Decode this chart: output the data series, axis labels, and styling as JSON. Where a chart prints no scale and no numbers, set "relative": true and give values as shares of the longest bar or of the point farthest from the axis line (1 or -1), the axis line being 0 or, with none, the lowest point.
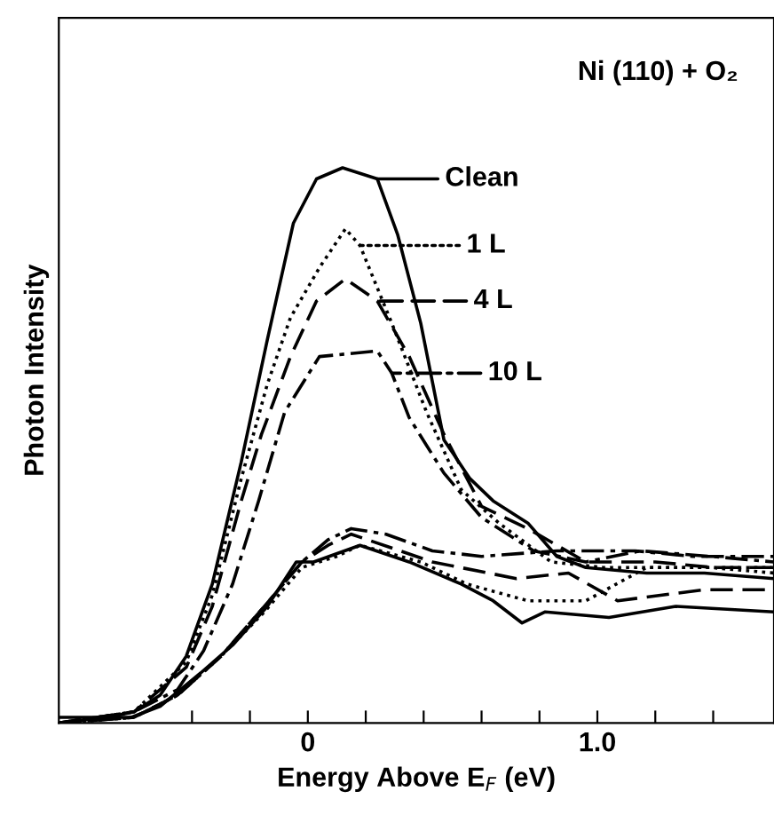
{
  "chart_data": {
    "type": "line",
    "title": "Ni (110) + O₂",
    "xlabel": "Energy Above E$_{F}$ (eV)",
    "ylabel": "Photon Intensity",
    "relative": true,
    "xlim": [
      -0.86,
      1.61
    ],
    "xticks": [
      {
        "value": -0.4,
        "label": null
      },
      {
        "value": -0.2,
        "label": null
      },
      0,
      {
        "value": 0.2,
        "label": null
      },
      {
        "value": 0.4,
        "label": null
      },
      {
        "value": 0.6,
        "label": null
      },
      {
        "value": 0.8,
        "label": null
      },
      {
        "value": 1.0,
        "label": "1.0"
      },
      {
        "value": 1.2,
        "label": null
      },
      {
        "value": 1.4,
        "label": null
      }
    ],
    "grid": false,
    "legend": "right",
    "marker": "none",
    "series": [
      {
        "name": "Clean",
        "color": "#000000",
        "line_style": "solid",
        "x": [
          -0.86,
          -0.69,
          -0.6,
          -0.51,
          -0.42,
          -0.33,
          -0.23,
          -0.14,
          -0.05,
          0.03,
          0.12,
          0.24,
          0.31,
          0.39,
          0.47,
          0.56,
          0.64,
          0.76,
          0.86,
          0.96,
          1.17,
          1.37,
          1.61
        ],
        "values": [
          0,
          0.01,
          0.02,
          0.05,
          0.12,
          0.25,
          0.47,
          0.69,
          0.9,
          0.98,
          1.0,
          0.98,
          0.88,
          0.72,
          0.51,
          0.44,
          0.4,
          0.36,
          0.3,
          0.28,
          0.27,
          0.27,
          0.26
        ]
      },
      {
        "name": "1 L",
        "color": "#000000",
        "line_style": "dotted",
        "x": [
          -0.86,
          -0.6,
          -0.42,
          -0.33,
          -0.23,
          -0.14,
          -0.06,
          0.04,
          0.13,
          0.18,
          0.29,
          0.41,
          0.53,
          0.66,
          0.84,
          1.02,
          1.21,
          1.39,
          1.61
        ],
        "values": [
          0,
          0.02,
          0.11,
          0.23,
          0.44,
          0.61,
          0.73,
          0.82,
          0.89,
          0.86,
          0.72,
          0.56,
          0.42,
          0.36,
          0.29,
          0.28,
          0.28,
          0.28,
          0.27
        ]
      },
      {
        "name": "4 L",
        "color": "#000000",
        "line_style": "dashed",
        "x": [
          -0.86,
          -0.6,
          -0.42,
          -0.33,
          -0.23,
          -0.16,
          -0.06,
          0.03,
          0.13,
          0.24,
          0.35,
          0.47,
          0.6,
          0.76,
          0.96,
          1.2,
          1.4,
          1.61
        ],
        "values": [
          0,
          0.02,
          0.1,
          0.21,
          0.4,
          0.52,
          0.66,
          0.76,
          0.8,
          0.76,
          0.66,
          0.52,
          0.39,
          0.35,
          0.29,
          0.29,
          0.28,
          0.28
        ]
      },
      {
        "name": "10 L",
        "color": "#000000",
        "line_style": "dashdot",
        "x": [
          -0.86,
          -0.6,
          -0.45,
          -0.36,
          -0.26,
          -0.17,
          -0.08,
          0.04,
          0.24,
          0.29,
          0.35,
          0.47,
          0.6,
          0.78,
          0.96,
          1.15,
          1.39,
          1.61
        ],
        "values": [
          0,
          0.02,
          0.06,
          0.13,
          0.25,
          0.4,
          0.56,
          0.66,
          0.67,
          0.63,
          0.55,
          0.45,
          0.37,
          0.31,
          0.29,
          0.31,
          0.3,
          0.29
        ]
      },
      {
        "color": "#000000",
        "line_style": "solid",
        "x": [
          -0.86,
          -0.61,
          -0.51,
          -0.37,
          -0.26,
          -0.14,
          -0.04,
          0.02,
          0.18,
          0.35,
          0.53,
          0.64,
          0.74,
          0.82,
          1.04,
          1.27,
          1.61
        ],
        "values": [
          0.01,
          0.01,
          0.03,
          0.09,
          0.14,
          0.21,
          0.29,
          0.29,
          0.32,
          0.29,
          0.25,
          0.22,
          0.18,
          0.2,
          0.19,
          0.21,
          0.2
        ]
      },
      {
        "color": "#000000",
        "line_style": "dotted",
        "x": [
          -0.86,
          -0.6,
          -0.45,
          -0.3,
          -0.15,
          -0.02,
          0.1,
          0.18,
          0.39,
          0.55,
          0.76,
          0.96,
          1.17,
          1.61
        ],
        "values": [
          0,
          0.01,
          0.05,
          0.12,
          0.2,
          0.28,
          0.3,
          0.32,
          0.29,
          0.25,
          0.22,
          0.22,
          0.28,
          0.28
        ]
      },
      {
        "color": "#000000",
        "line_style": "dashed",
        "x": [
          -0.86,
          -0.6,
          -0.45,
          -0.3,
          -0.15,
          -0.02,
          0.07,
          0.15,
          0.43,
          0.72,
          0.9,
          1.07,
          1.37,
          1.61
        ],
        "values": [
          0,
          0.01,
          0.05,
          0.12,
          0.21,
          0.29,
          0.32,
          0.34,
          0.29,
          0.26,
          0.27,
          0.22,
          0.24,
          0.24
        ]
      },
      {
        "color": "#000000",
        "line_style": "dashdot",
        "x": [
          -0.86,
          -0.6,
          -0.45,
          -0.3,
          -0.15,
          -0.02,
          0.07,
          0.15,
          0.27,
          0.43,
          0.6,
          0.86,
          1.13,
          1.33,
          1.61
        ],
        "values": [
          0,
          0.01,
          0.05,
          0.12,
          0.21,
          0.29,
          0.33,
          0.35,
          0.34,
          0.31,
          0.3,
          0.31,
          0.31,
          0.3,
          0.3
        ]
      }
    ]
  }
}
